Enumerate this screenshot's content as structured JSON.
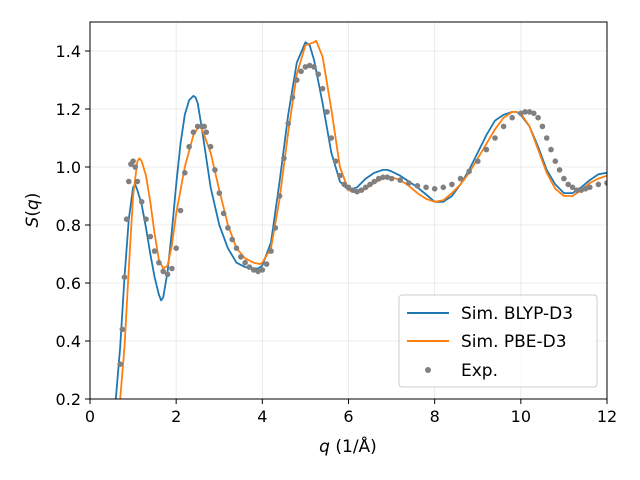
{
  "chart_data": {
    "type": "line",
    "xlabel": "q (1/Å)",
    "ylabel": "S(q)",
    "xlim": [
      0,
      12
    ],
    "ylim": [
      0.2,
      1.5
    ],
    "xticks": [
      0,
      2,
      4,
      6,
      8,
      10,
      12
    ],
    "yticks": [
      0.2,
      0.4,
      0.6,
      0.8,
      1.0,
      1.2,
      1.4
    ],
    "xtick_labels": [
      "0",
      "2",
      "4",
      "6",
      "8",
      "10",
      "12"
    ],
    "ytick_labels": [
      "0.2",
      "0.4",
      "0.6",
      "0.8",
      "1.0",
      "1.2",
      "1.4"
    ],
    "grid": true,
    "legend_position": "lower-right",
    "series": [
      {
        "name": "Sim. BLYP-D3",
        "style": "line",
        "color": "#1f77b4",
        "x": [
          0.6,
          0.7,
          0.8,
          0.9,
          1.0,
          1.05,
          1.1,
          1.2,
          1.3,
          1.4,
          1.5,
          1.6,
          1.65,
          1.7,
          1.8,
          1.9,
          2.0,
          2.1,
          2.2,
          2.3,
          2.4,
          2.45,
          2.5,
          2.6,
          2.7,
          2.8,
          3.0,
          3.2,
          3.4,
          3.6,
          3.8,
          3.9,
          4.0,
          4.2,
          4.4,
          4.6,
          4.8,
          5.0,
          5.1,
          5.2,
          5.4,
          5.6,
          5.8,
          6.0,
          6.2,
          6.4,
          6.6,
          6.8,
          6.9,
          7.0,
          7.2,
          7.4,
          7.6,
          7.8,
          8.0,
          8.2,
          8.4,
          8.6,
          8.8,
          9.0,
          9.2,
          9.4,
          9.6,
          9.8,
          9.9,
          10.0,
          10.2,
          10.4,
          10.6,
          10.8,
          11.0,
          11.2,
          11.4,
          11.6,
          11.8,
          12.0
        ],
        "y": [
          0.2,
          0.38,
          0.62,
          0.82,
          0.93,
          0.94,
          0.92,
          0.87,
          0.79,
          0.7,
          0.62,
          0.56,
          0.54,
          0.55,
          0.64,
          0.78,
          0.94,
          1.08,
          1.18,
          1.23,
          1.245,
          1.24,
          1.22,
          1.13,
          1.03,
          0.93,
          0.8,
          0.72,
          0.67,
          0.655,
          0.65,
          0.65,
          0.66,
          0.74,
          0.95,
          1.18,
          1.36,
          1.43,
          1.42,
          1.37,
          1.22,
          1.05,
          0.95,
          0.92,
          0.93,
          0.96,
          0.98,
          0.99,
          0.99,
          0.985,
          0.97,
          0.95,
          0.93,
          0.905,
          0.88,
          0.88,
          0.9,
          0.94,
          0.99,
          1.05,
          1.11,
          1.16,
          1.18,
          1.19,
          1.19,
          1.18,
          1.14,
          1.07,
          0.99,
          0.94,
          0.91,
          0.91,
          0.93,
          0.955,
          0.975,
          0.98
        ]
      },
      {
        "name": "Sim. PBE-D3",
        "style": "line",
        "color": "#ff7f0e",
        "x": [
          0.7,
          0.8,
          0.9,
          1.0,
          1.1,
          1.15,
          1.2,
          1.3,
          1.4,
          1.5,
          1.6,
          1.7,
          1.8,
          1.9,
          2.0,
          2.2,
          2.4,
          2.5,
          2.55,
          2.6,
          2.8,
          3.0,
          3.2,
          3.4,
          3.6,
          3.8,
          3.95,
          4.0,
          4.2,
          4.4,
          4.6,
          4.8,
          5.0,
          5.2,
          5.25,
          5.4,
          5.6,
          5.8,
          6.0,
          6.2,
          6.4,
          6.6,
          6.8,
          7.0,
          7.2,
          7.4,
          7.6,
          7.8,
          8.0,
          8.2,
          8.4,
          8.6,
          8.8,
          9.0,
          9.2,
          9.4,
          9.6,
          9.8,
          9.9,
          10.0,
          10.2,
          10.4,
          10.6,
          10.8,
          11.0,
          11.2,
          11.4,
          11.6,
          11.8,
          12.0
        ],
        "y": [
          0.2,
          0.38,
          0.65,
          0.9,
          1.02,
          1.03,
          1.02,
          0.97,
          0.88,
          0.77,
          0.68,
          0.65,
          0.66,
          0.73,
          0.84,
          1.0,
          1.11,
          1.135,
          1.14,
          1.13,
          1.05,
          0.92,
          0.8,
          0.72,
          0.685,
          0.67,
          0.665,
          0.67,
          0.72,
          0.89,
          1.12,
          1.32,
          1.42,
          1.43,
          1.435,
          1.38,
          1.2,
          1.0,
          0.92,
          0.91,
          0.925,
          0.945,
          0.96,
          0.965,
          0.955,
          0.935,
          0.91,
          0.89,
          0.88,
          0.885,
          0.91,
          0.94,
          0.98,
          1.03,
          1.08,
          1.13,
          1.17,
          1.19,
          1.19,
          1.185,
          1.14,
          1.06,
          0.98,
          0.925,
          0.9,
          0.9,
          0.92,
          0.945,
          0.96,
          0.97
        ]
      },
      {
        "name": "Exp.",
        "style": "scatter",
        "color": "#808080",
        "x": [
          0.7,
          0.75,
          0.8,
          0.85,
          0.9,
          0.95,
          1.0,
          1.05,
          1.1,
          1.2,
          1.3,
          1.4,
          1.5,
          1.6,
          1.7,
          1.8,
          1.9,
          2.0,
          2.1,
          2.2,
          2.3,
          2.4,
          2.5,
          2.6,
          2.65,
          2.7,
          2.8,
          2.9,
          3.0,
          3.1,
          3.2,
          3.3,
          3.4,
          3.5,
          3.6,
          3.7,
          3.8,
          3.9,
          4.0,
          4.1,
          4.2,
          4.3,
          4.4,
          4.5,
          4.6,
          4.7,
          4.8,
          4.9,
          5.0,
          5.1,
          5.2,
          5.3,
          5.4,
          5.5,
          5.6,
          5.7,
          5.8,
          5.9,
          6.0,
          6.1,
          6.2,
          6.3,
          6.4,
          6.5,
          6.6,
          6.7,
          6.8,
          6.9,
          7.0,
          7.2,
          7.4,
          7.6,
          7.8,
          8.0,
          8.2,
          8.4,
          8.6,
          8.8,
          9.0,
          9.2,
          9.4,
          9.6,
          9.8,
          10.0,
          10.1,
          10.2,
          10.3,
          10.4,
          10.5,
          10.6,
          10.7,
          10.8,
          10.9,
          11.0,
          11.1,
          11.2,
          11.3,
          11.4,
          11.5,
          11.6,
          11.8,
          12.0
        ],
        "y": [
          0.32,
          0.44,
          0.62,
          0.82,
          0.95,
          1.01,
          1.02,
          1.0,
          0.95,
          0.88,
          0.82,
          0.76,
          0.71,
          0.67,
          0.64,
          0.63,
          0.65,
          0.72,
          0.85,
          0.98,
          1.07,
          1.12,
          1.14,
          1.14,
          1.14,
          1.12,
          1.07,
          0.99,
          0.91,
          0.84,
          0.79,
          0.75,
          0.72,
          0.69,
          0.67,
          0.655,
          0.645,
          0.64,
          0.645,
          0.665,
          0.71,
          0.79,
          0.9,
          1.03,
          1.15,
          1.24,
          1.3,
          1.33,
          1.345,
          1.35,
          1.345,
          1.32,
          1.27,
          1.19,
          1.1,
          1.02,
          0.97,
          0.94,
          0.93,
          0.92,
          0.915,
          0.92,
          0.93,
          0.94,
          0.95,
          0.96,
          0.965,
          0.965,
          0.96,
          0.955,
          0.945,
          0.935,
          0.93,
          0.925,
          0.93,
          0.94,
          0.96,
          0.985,
          1.02,
          1.06,
          1.1,
          1.14,
          1.17,
          1.185,
          1.19,
          1.19,
          1.185,
          1.17,
          1.14,
          1.1,
          1.06,
          1.02,
          0.99,
          0.96,
          0.94,
          0.93,
          0.92,
          0.92,
          0.925,
          0.93,
          0.94,
          0.945
        ]
      }
    ]
  }
}
